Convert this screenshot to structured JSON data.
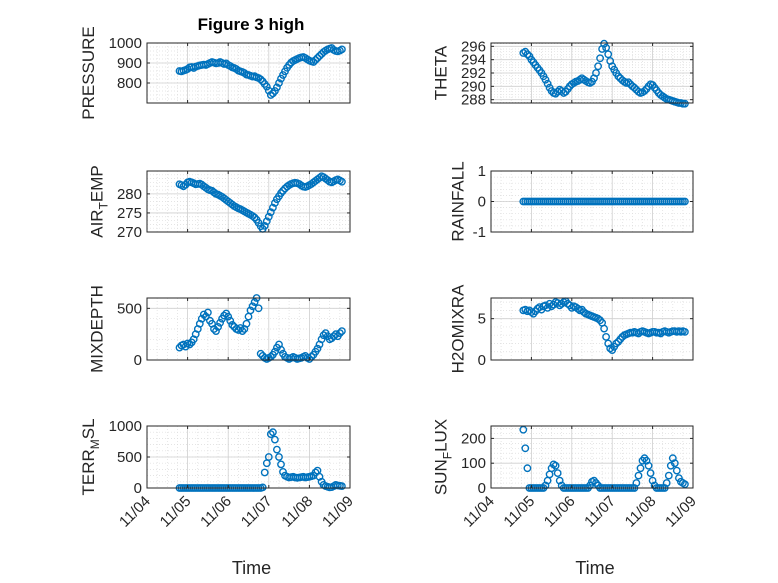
{
  "figure_title": "Figure 3 high",
  "marker_color": "#0072BD",
  "x_tick_labels": [
    "11/04",
    "11/05",
    "11/06",
    "11/07",
    "11/08",
    "11/09"
  ],
  "chart_data": [
    {
      "type": "scatter",
      "name": "pressure",
      "title": "Figure 3 high",
      "ylabel": "PRESSURE",
      "xlabel": "",
      "ylim": [
        700,
        1000
      ],
      "yticks": [
        800,
        900,
        1000
      ],
      "grid": true,
      "x": [
        4.8,
        4.85,
        4.9,
        4.95,
        5.0,
        5.05,
        5.1,
        5.15,
        5.2,
        5.25,
        5.3,
        5.35,
        5.4,
        5.45,
        5.5,
        5.55,
        5.6,
        5.65,
        5.7,
        5.75,
        5.8,
        5.85,
        5.9,
        5.95,
        6.0,
        6.05,
        6.1,
        6.15,
        6.2,
        6.25,
        6.3,
        6.35,
        6.4,
        6.45,
        6.5,
        6.55,
        6.6,
        6.65,
        6.7,
        6.75,
        6.8,
        6.85,
        6.9,
        6.95,
        7.0,
        7.05,
        7.1,
        7.15,
        7.2,
        7.25,
        7.3,
        7.35,
        7.4,
        7.45,
        7.5,
        7.55,
        7.6,
        7.65,
        7.7,
        7.75,
        7.8,
        7.85,
        7.9,
        7.95,
        8.0,
        8.05,
        8.1,
        8.15,
        8.2,
        8.25,
        8.3,
        8.35,
        8.4,
        8.45,
        8.5,
        8.55,
        8.6,
        8.65,
        8.7,
        8.75,
        8.8
      ],
      "y": [
        860,
        858,
        862,
        865,
        870,
        878,
        880,
        875,
        882,
        885,
        888,
        890,
        892,
        890,
        895,
        900,
        905,
        902,
        898,
        900,
        905,
        900,
        895,
        898,
        890,
        885,
        878,
        875,
        870,
        862,
        858,
        855,
        850,
        842,
        840,
        836,
        832,
        834,
        828,
        825,
        818,
        808,
        795,
        782,
        762,
        740,
        748,
        760,
        778,
        800,
        822,
        840,
        858,
        876,
        890,
        902,
        910,
        915,
        920,
        925,
        928,
        930,
        925,
        918,
        912,
        908,
        905,
        915,
        925,
        935,
        945,
        955,
        962,
        968,
        972,
        975,
        965,
        960,
        958,
        962,
        968
      ]
    },
    {
      "type": "scatter",
      "name": "theta",
      "ylabel": "THETA",
      "xlabel": "",
      "ylim": [
        287.5,
        296.5
      ],
      "yticks": [
        288,
        290,
        292,
        294,
        296
      ],
      "grid": true,
      "x": [
        4.8,
        4.85,
        4.9,
        4.95,
        5.0,
        5.05,
        5.1,
        5.15,
        5.2,
        5.25,
        5.3,
        5.35,
        5.4,
        5.45,
        5.5,
        5.55,
        5.6,
        5.65,
        5.7,
        5.75,
        5.8,
        5.85,
        5.9,
        5.95,
        6.0,
        6.05,
        6.1,
        6.15,
        6.2,
        6.25,
        6.3,
        6.35,
        6.4,
        6.45,
        6.5,
        6.55,
        6.6,
        6.65,
        6.7,
        6.75,
        6.8,
        6.85,
        6.9,
        6.95,
        7.0,
        7.05,
        7.1,
        7.15,
        7.2,
        7.25,
        7.3,
        7.35,
        7.4,
        7.45,
        7.5,
        7.55,
        7.6,
        7.65,
        7.7,
        7.75,
        7.8,
        7.85,
        7.9,
        7.95,
        8.0,
        8.05,
        8.1,
        8.15,
        8.2,
        8.25,
        8.3,
        8.35,
        8.4,
        8.45,
        8.5,
        8.55,
        8.6,
        8.65,
        8.7,
        8.75,
        8.8
      ],
      "y": [
        295.0,
        295.2,
        294.8,
        294.5,
        294.0,
        293.6,
        293.2,
        292.8,
        292.4,
        292.0,
        291.5,
        291.0,
        290.4,
        289.8,
        289.3,
        289.0,
        288.9,
        289.2,
        289.5,
        289.3,
        289.0,
        289.2,
        289.6,
        290.0,
        290.3,
        290.5,
        290.7,
        290.8,
        291.0,
        291.2,
        291.0,
        290.8,
        290.6,
        290.5,
        290.7,
        291.2,
        292.0,
        293.0,
        294.2,
        295.6,
        296.4,
        295.8,
        294.8,
        293.8,
        293.0,
        292.5,
        292.0,
        291.5,
        291.2,
        290.9,
        290.7,
        290.5,
        290.6,
        290.3,
        290.0,
        289.8,
        289.5,
        289.2,
        289.0,
        289.1,
        289.3,
        289.6,
        290.0,
        290.3,
        290.2,
        289.8,
        289.4,
        289.0,
        288.7,
        288.5,
        288.3,
        288.1,
        288.0,
        287.9,
        287.8,
        287.7,
        287.6,
        287.5,
        287.5,
        287.4,
        287.4
      ]
    },
    {
      "type": "scatter",
      "name": "air_temp",
      "ylabel": "AIR_TEMP",
      "xlabel": "",
      "ylim": [
        270,
        286
      ],
      "yticks": [
        270,
        275,
        280
      ],
      "grid": true,
      "x": [
        4.8,
        4.85,
        4.9,
        4.95,
        5.0,
        5.05,
        5.1,
        5.15,
        5.2,
        5.25,
        5.3,
        5.35,
        5.4,
        5.45,
        5.5,
        5.55,
        5.6,
        5.65,
        5.7,
        5.75,
        5.8,
        5.85,
        5.9,
        5.95,
        6.0,
        6.05,
        6.1,
        6.15,
        6.2,
        6.25,
        6.3,
        6.35,
        6.4,
        6.45,
        6.5,
        6.55,
        6.6,
        6.65,
        6.7,
        6.75,
        6.8,
        6.85,
        6.9,
        6.95,
        7.0,
        7.05,
        7.1,
        7.15,
        7.2,
        7.25,
        7.3,
        7.35,
        7.4,
        7.45,
        7.5,
        7.55,
        7.6,
        7.65,
        7.7,
        7.75,
        7.8,
        7.85,
        7.9,
        7.95,
        8.0,
        8.05,
        8.1,
        8.15,
        8.2,
        8.25,
        8.3,
        8.35,
        8.4,
        8.45,
        8.5,
        8.55,
        8.6,
        8.65,
        8.7,
        8.75,
        8.8
      ],
      "y": [
        282.5,
        282.3,
        282.0,
        282.4,
        283.0,
        283.2,
        283.0,
        282.8,
        282.5,
        282.6,
        282.7,
        282.4,
        282.0,
        281.6,
        281.2,
        281.0,
        280.8,
        280.4,
        280.0,
        279.8,
        279.5,
        279.2,
        278.8,
        278.4,
        278.0,
        277.6,
        277.2,
        276.8,
        276.5,
        276.2,
        276.0,
        275.7,
        275.4,
        275.1,
        274.8,
        274.5,
        274.2,
        273.8,
        273.2,
        272.4,
        271.5,
        270.8,
        271.6,
        272.8,
        274.0,
        275.2,
        276.4,
        277.6,
        278.6,
        279.4,
        280.2,
        280.8,
        281.4,
        281.9,
        282.3,
        282.6,
        282.8,
        282.9,
        282.8,
        282.6,
        282.2,
        281.9,
        281.8,
        282.0,
        282.3,
        282.6,
        283.0,
        283.4,
        283.8,
        284.2,
        284.6,
        284.4,
        284.0,
        283.6,
        283.2,
        283.0,
        283.3,
        283.6,
        283.8,
        283.5,
        283.2
      ]
    },
    {
      "type": "scatter",
      "name": "rainfall",
      "ylabel": "RAINFALL",
      "xlabel": "",
      "ylim": [
        -1,
        1
      ],
      "yticks": [
        -1,
        0,
        1
      ],
      "grid": true,
      "x": [
        4.8,
        4.85,
        4.9,
        4.95,
        5.0,
        5.05,
        5.1,
        5.15,
        5.2,
        5.25,
        5.3,
        5.35,
        5.4,
        5.45,
        5.5,
        5.55,
        5.6,
        5.65,
        5.7,
        5.75,
        5.8,
        5.85,
        5.9,
        5.95,
        6.0,
        6.05,
        6.1,
        6.15,
        6.2,
        6.25,
        6.3,
        6.35,
        6.4,
        6.45,
        6.5,
        6.55,
        6.6,
        6.65,
        6.7,
        6.75,
        6.8,
        6.85,
        6.9,
        6.95,
        7.0,
        7.05,
        7.1,
        7.15,
        7.2,
        7.25,
        7.3,
        7.35,
        7.4,
        7.45,
        7.5,
        7.55,
        7.6,
        7.65,
        7.7,
        7.75,
        7.8,
        7.85,
        7.9,
        7.95,
        8.0,
        8.05,
        8.1,
        8.15,
        8.2,
        8.25,
        8.3,
        8.35,
        8.4,
        8.45,
        8.5,
        8.55,
        8.6,
        8.65,
        8.7,
        8.75,
        8.8
      ],
      "y": [
        0,
        0,
        0,
        0,
        0,
        0,
        0,
        0,
        0,
        0,
        0,
        0,
        0,
        0,
        0,
        0,
        0,
        0,
        0,
        0,
        0,
        0,
        0,
        0,
        0,
        0,
        0,
        0,
        0,
        0,
        0,
        0,
        0,
        0,
        0,
        0,
        0,
        0,
        0,
        0,
        0,
        0,
        0,
        0,
        0,
        0,
        0,
        0,
        0,
        0,
        0,
        0,
        0,
        0,
        0,
        0,
        0,
        0,
        0,
        0,
        0,
        0,
        0,
        0,
        0,
        0,
        0,
        0,
        0,
        0,
        0,
        0,
        0,
        0,
        0,
        0,
        0,
        0,
        0,
        0,
        0
      ]
    },
    {
      "type": "scatter",
      "name": "mixdepth",
      "ylabel": "MIXDEPTH",
      "xlabel": "",
      "ylim": [
        0,
        600
      ],
      "yticks": [
        0,
        500
      ],
      "grid": true,
      "x": [
        4.8,
        4.85,
        4.9,
        4.95,
        5.0,
        5.05,
        5.1,
        5.15,
        5.2,
        5.25,
        5.3,
        5.35,
        5.4,
        5.45,
        5.5,
        5.55,
        5.6,
        5.65,
        5.7,
        5.75,
        5.8,
        5.85,
        5.9,
        5.95,
        6.0,
        6.05,
        6.1,
        6.15,
        6.2,
        6.25,
        6.3,
        6.35,
        6.4,
        6.45,
        6.5,
        6.55,
        6.6,
        6.65,
        6.7,
        6.75,
        6.8,
        6.85,
        6.9,
        6.95,
        7.0,
        7.05,
        7.1,
        7.15,
        7.2,
        7.25,
        7.3,
        7.35,
        7.4,
        7.45,
        7.5,
        7.55,
        7.6,
        7.65,
        7.7,
        7.75,
        7.8,
        7.85,
        7.9,
        7.95,
        8.0,
        8.05,
        8.1,
        8.15,
        8.2,
        8.25,
        8.3,
        8.35,
        8.4,
        8.45,
        8.5,
        8.55,
        8.6,
        8.65,
        8.7,
        8.75,
        8.8
      ],
      "y": [
        120,
        140,
        150,
        130,
        160,
        150,
        170,
        200,
        250,
        300,
        350,
        400,
        440,
        420,
        460,
        380,
        350,
        300,
        280,
        320,
        360,
        400,
        430,
        450,
        420,
        380,
        340,
        320,
        300,
        290,
        310,
        280,
        300,
        350,
        420,
        480,
        520,
        560,
        600,
        500,
        60,
        40,
        20,
        10,
        20,
        30,
        50,
        80,
        120,
        150,
        100,
        60,
        30,
        20,
        10,
        20,
        30,
        20,
        10,
        15,
        20,
        30,
        40,
        20,
        10,
        30,
        50,
        80,
        110,
        150,
        200,
        240,
        260,
        230,
        200,
        210,
        230,
        250,
        230,
        260,
        280
      ]
    },
    {
      "type": "scatter",
      "name": "h2omixra",
      "ylabel": "H2OMIXRA",
      "xlabel": "",
      "ylim": [
        0,
        7.5
      ],
      "yticks": [
        0,
        5
      ],
      "grid": true,
      "x": [
        4.8,
        4.85,
        4.9,
        4.95,
        5.0,
        5.05,
        5.1,
        5.15,
        5.2,
        5.25,
        5.3,
        5.35,
        5.4,
        5.45,
        5.5,
        5.55,
        5.6,
        5.65,
        5.7,
        5.75,
        5.8,
        5.85,
        5.9,
        5.95,
        6.0,
        6.05,
        6.1,
        6.15,
        6.2,
        6.25,
        6.3,
        6.35,
        6.4,
        6.45,
        6.5,
        6.55,
        6.6,
        6.65,
        6.7,
        6.75,
        6.8,
        6.85,
        6.9,
        6.95,
        7.0,
        7.05,
        7.1,
        7.15,
        7.2,
        7.25,
        7.3,
        7.35,
        7.4,
        7.45,
        7.5,
        7.55,
        7.6,
        7.65,
        7.7,
        7.75,
        7.8,
        7.85,
        7.9,
        7.95,
        8.0,
        8.05,
        8.1,
        8.15,
        8.2,
        8.25,
        8.3,
        8.35,
        8.4,
        8.45,
        8.5,
        8.55,
        8.6,
        8.65,
        8.7,
        8.75,
        8.8
      ],
      "y": [
        6.0,
        6.1,
        5.9,
        6.0,
        5.8,
        5.6,
        5.9,
        6.2,
        6.4,
        6.1,
        6.5,
        6.6,
        6.3,
        6.8,
        6.5,
        6.7,
        7.0,
        6.9,
        6.6,
        6.8,
        7.0,
        7.1,
        6.8,
        6.6,
        6.3,
        6.5,
        6.4,
        6.2,
        6.0,
        6.1,
        5.8,
        5.6,
        5.5,
        5.4,
        5.3,
        5.2,
        5.1,
        5.0,
        4.8,
        4.5,
        3.8,
        2.8,
        2.0,
        1.4,
        1.2,
        1.6,
        2.0,
        2.2,
        2.5,
        2.8,
        3.0,
        3.1,
        3.2,
        3.3,
        3.3,
        3.4,
        3.3,
        3.2,
        3.4,
        3.5,
        3.4,
        3.3,
        3.2,
        3.3,
        3.4,
        3.4,
        3.3,
        3.3,
        3.2,
        3.4,
        3.5,
        3.4,
        3.3,
        3.4,
        3.5,
        3.5,
        3.4,
        3.5,
        3.4,
        3.5,
        3.4
      ]
    },
    {
      "type": "scatter",
      "name": "terr_msl",
      "ylabel": "TERR_MSL",
      "xlabel": "Time",
      "ylim": [
        0,
        1000
      ],
      "yticks": [
        0,
        500,
        1000
      ],
      "grid": true,
      "x": [
        4.8,
        4.85,
        4.9,
        4.95,
        5.0,
        5.05,
        5.1,
        5.15,
        5.2,
        5.25,
        5.3,
        5.35,
        5.4,
        5.45,
        5.5,
        5.55,
        5.6,
        5.65,
        5.7,
        5.75,
        5.8,
        5.85,
        5.9,
        5.95,
        6.0,
        6.05,
        6.1,
        6.15,
        6.2,
        6.25,
        6.3,
        6.35,
        6.4,
        6.45,
        6.5,
        6.55,
        6.6,
        6.65,
        6.7,
        6.75,
        6.8,
        6.85,
        6.9,
        6.95,
        7.0,
        7.05,
        7.1,
        7.15,
        7.2,
        7.25,
        7.3,
        7.35,
        7.4,
        7.45,
        7.5,
        7.55,
        7.6,
        7.65,
        7.7,
        7.75,
        7.8,
        7.85,
        7.9,
        7.95,
        8.0,
        8.05,
        8.1,
        8.15,
        8.2,
        8.25,
        8.3,
        8.35,
        8.4,
        8.45,
        8.5,
        8.55,
        8.6,
        8.65,
        8.7,
        8.75,
        8.8
      ],
      "y": [
        0,
        0,
        0,
        0,
        0,
        0,
        0,
        0,
        0,
        0,
        0,
        0,
        0,
        0,
        0,
        0,
        0,
        0,
        0,
        0,
        0,
        0,
        0,
        0,
        0,
        0,
        0,
        0,
        0,
        0,
        0,
        0,
        0,
        0,
        0,
        0,
        0,
        0,
        0,
        0,
        0,
        10,
        250,
        400,
        500,
        870,
        900,
        780,
        620,
        500,
        380,
        260,
        200,
        180,
        170,
        175,
        180,
        170,
        165,
        170,
        175,
        180,
        170,
        175,
        180,
        190,
        200,
        250,
        280,
        180,
        100,
        50,
        30,
        20,
        10,
        15,
        30,
        50,
        40,
        35,
        30
      ]
    },
    {
      "type": "scatter",
      "name": "sun_flux",
      "ylabel": "SUN_FLUX",
      "xlabel": "Time",
      "ylim": [
        0,
        250
      ],
      "yticks": [
        0,
        100,
        200
      ],
      "grid": true,
      "x": [
        4.8,
        4.85,
        4.9,
        4.95,
        5.0,
        5.05,
        5.1,
        5.15,
        5.2,
        5.25,
        5.3,
        5.35,
        5.4,
        5.45,
        5.5,
        5.55,
        5.6,
        5.65,
        5.7,
        5.75,
        5.8,
        5.85,
        5.9,
        5.95,
        6.0,
        6.05,
        6.1,
        6.15,
        6.2,
        6.25,
        6.3,
        6.35,
        6.4,
        6.45,
        6.5,
        6.55,
        6.6,
        6.65,
        6.7,
        6.75,
        6.8,
        6.85,
        6.9,
        6.95,
        7.0,
        7.05,
        7.1,
        7.15,
        7.2,
        7.25,
        7.3,
        7.35,
        7.4,
        7.45,
        7.5,
        7.55,
        7.6,
        7.65,
        7.7,
        7.75,
        7.8,
        7.85,
        7.9,
        7.95,
        8.0,
        8.05,
        8.1,
        8.15,
        8.2,
        8.25,
        8.3,
        8.35,
        8.4,
        8.45,
        8.5,
        8.55,
        8.6,
        8.65,
        8.7,
        8.75,
        8.8
      ],
      "y": [
        235,
        160,
        80,
        0,
        0,
        0,
        0,
        0,
        0,
        0,
        0,
        10,
        30,
        55,
        80,
        95,
        90,
        60,
        30,
        10,
        0,
        0,
        0,
        0,
        0,
        0,
        0,
        0,
        0,
        0,
        0,
        0,
        0,
        10,
        25,
        30,
        20,
        10,
        0,
        0,
        0,
        0,
        0,
        0,
        0,
        0,
        0,
        0,
        0,
        0,
        0,
        0,
        0,
        0,
        0,
        0,
        20,
        50,
        80,
        110,
        120,
        110,
        90,
        60,
        30,
        10,
        0,
        0,
        0,
        0,
        0,
        20,
        50,
        90,
        120,
        100,
        70,
        40,
        25,
        20,
        15
      ]
    }
  ]
}
